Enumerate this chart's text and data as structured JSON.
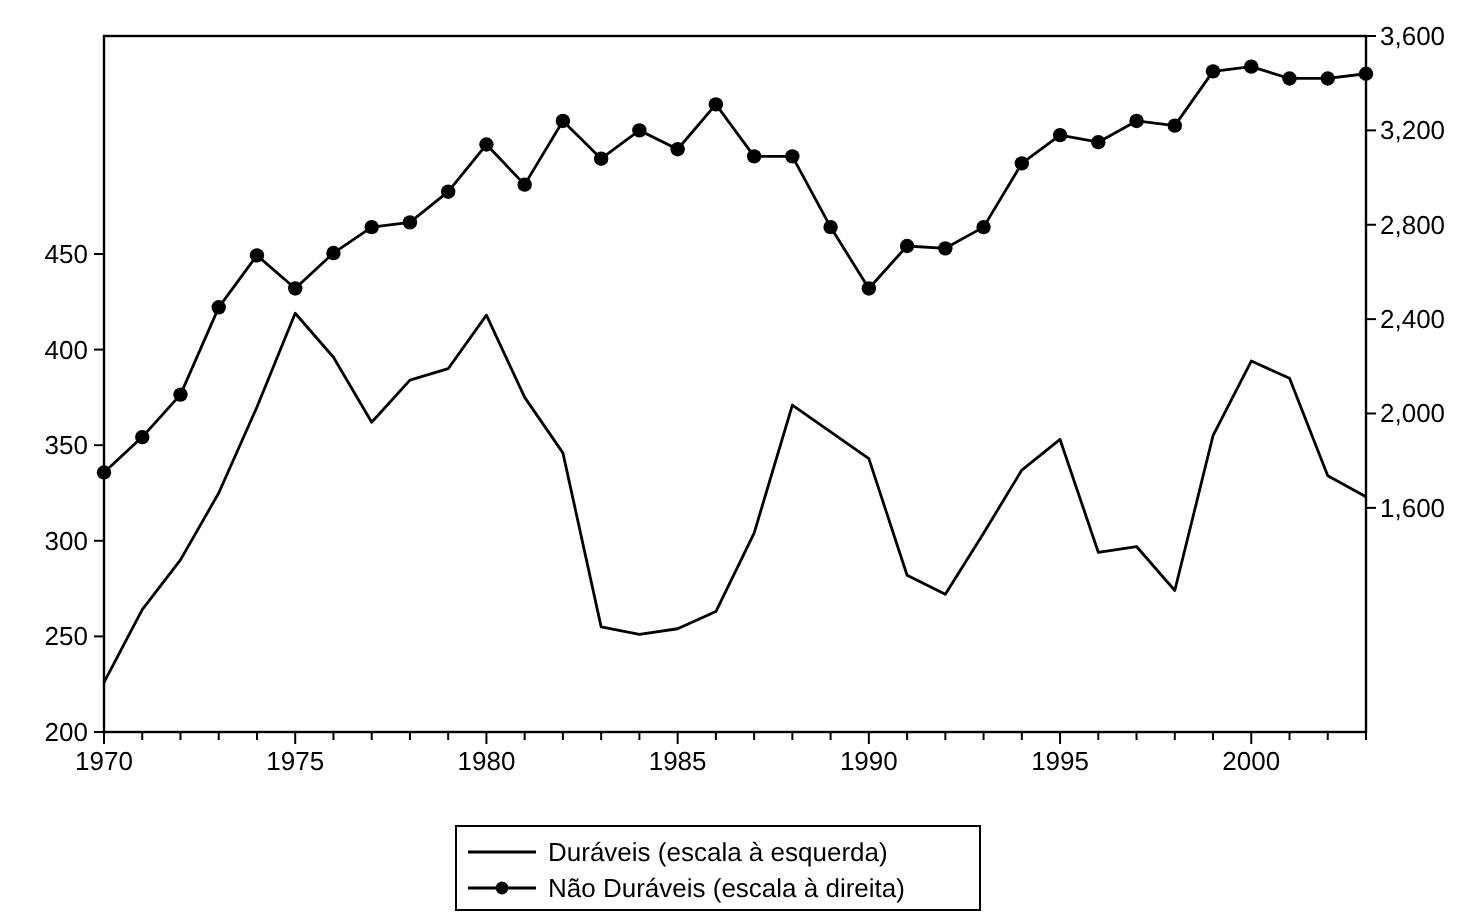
{
  "chart_data": {
    "type": "line",
    "x": [
      1970,
      1971,
      1972,
      1973,
      1974,
      1975,
      1976,
      1977,
      1978,
      1979,
      1980,
      1981,
      1982,
      1983,
      1984,
      1985,
      1986,
      1987,
      1988,
      1989,
      1990,
      1991,
      1992,
      1993,
      1994,
      1995,
      1996,
      1997,
      1998,
      1999,
      2000,
      2001,
      2002,
      2003
    ],
    "series": [
      {
        "name": "Duráveis (escala à esquerda)",
        "color": "#000000",
        "marker": "none",
        "values": [
          226,
          264,
          290,
          325,
          370,
          419,
          396,
          362,
          384,
          390,
          418,
          375,
          346,
          255,
          251,
          254,
          263,
          304,
          371,
          357,
          343,
          282,
          272,
          304,
          337,
          353,
          294,
          297,
          274,
          355,
          394,
          385,
          334,
          323
        ]
      },
      {
        "name": "Não Duráveis (escala à direita)",
        "color": "#000000",
        "marker": "circle",
        "axis": "y2",
        "values": [
          1750,
          1900,
          2080,
          2450,
          2670,
          2530,
          2680,
          2790,
          2810,
          2940,
          3140,
          2970,
          3240,
          3080,
          3200,
          3120,
          3310,
          3090,
          3090,
          2790,
          2530,
          2710,
          2700,
          2790,
          3060,
          3180,
          3150,
          3240,
          3220,
          3450,
          3470,
          3420,
          3420,
          3440
        ]
      }
    ],
    "xlim": [
      1970,
      2003
    ],
    "xticks": [
      1970,
      {
        "value": 1971,
        "label": null
      },
      {
        "value": 1972,
        "label": null
      },
      {
        "value": 1973,
        "label": null
      },
      {
        "value": 1974,
        "label": null
      },
      1975,
      {
        "value": 1976,
        "label": null
      },
      {
        "value": 1977,
        "label": null
      },
      {
        "value": 1978,
        "label": null
      },
      {
        "value": 1979,
        "label": null
      },
      1980,
      {
        "value": 1981,
        "label": null
      },
      {
        "value": 1982,
        "label": null
      },
      {
        "value": 1983,
        "label": null
      },
      {
        "value": 1984,
        "label": null
      },
      1985,
      {
        "value": 1986,
        "label": null
      },
      {
        "value": 1987,
        "label": null
      },
      {
        "value": 1988,
        "label": null
      },
      {
        "value": 1989,
        "label": null
      },
      1990,
      {
        "value": 1991,
        "label": null
      },
      {
        "value": 1992,
        "label": null
      },
      {
        "value": 1993,
        "label": null
      },
      {
        "value": 1994,
        "label": null
      },
      1995,
      {
        "value": 1996,
        "label": null
      },
      {
        "value": 1997,
        "label": null
      },
      {
        "value": 1998,
        "label": null
      },
      {
        "value": 1999,
        "label": null
      },
      2000,
      {
        "value": 2001,
        "label": null
      },
      {
        "value": 2002,
        "label": null
      },
      {
        "value": 2003,
        "label": null
      }
    ],
    "ylim": [
      200,
      564
    ],
    "yticks": [
      200,
      250,
      300,
      350,
      400,
      450
    ],
    "y2lim": [
      650,
      3600
    ],
    "y2ticks": [
      {
        "value": 1600,
        "label": "1,600"
      },
      {
        "value": 2000,
        "label": "2,000"
      },
      {
        "value": 2400,
        "label": "2,400"
      },
      {
        "value": 2800,
        "label": "2,800"
      },
      {
        "value": 3200,
        "label": "3,200"
      },
      {
        "value": 3600,
        "label": "3,600"
      }
    ],
    "grid": false,
    "legend": "bottom",
    "line_style": "solid"
  }
}
